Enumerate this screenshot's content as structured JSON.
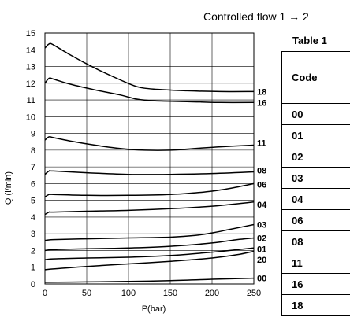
{
  "title": "Controlled flow  1 → 2",
  "table": {
    "title": "Table 1",
    "header": "Code",
    "codes": [
      "00",
      "01",
      "02",
      "03",
      "04",
      "06",
      "08",
      "11",
      "16",
      "18"
    ]
  },
  "chart_data": {
    "type": "line",
    "title": "",
    "xlabel": "P(bar)",
    "ylabel": "Q (l/min)",
    "xlim": [
      0,
      250
    ],
    "ylim": [
      0,
      15
    ],
    "xticks": [
      0,
      50,
      100,
      150,
      200,
      250
    ],
    "yticks": [
      0,
      1,
      2,
      3,
      4,
      5,
      6,
      7,
      8,
      9,
      10,
      11,
      12,
      13,
      14,
      15
    ],
    "grid": true,
    "series": [
      {
        "name": "18",
        "x": [
          0,
          5,
          10,
          30,
          60,
          90,
          110,
          130,
          170,
          210,
          250
        ],
        "y": [
          14.1,
          14.35,
          14.3,
          13.7,
          12.9,
          12.2,
          11.8,
          11.65,
          11.55,
          11.5,
          11.5
        ]
      },
      {
        "name": "16",
        "x": [
          0,
          5,
          10,
          30,
          60,
          90,
          110,
          130,
          170,
          210,
          250
        ],
        "y": [
          12.0,
          12.3,
          12.25,
          11.95,
          11.6,
          11.3,
          11.05,
          10.95,
          10.9,
          10.85,
          10.85
        ]
      },
      {
        "name": "11",
        "x": [
          0,
          5,
          10,
          30,
          60,
          90,
          120,
          150,
          180,
          210,
          250
        ],
        "y": [
          8.6,
          8.8,
          8.75,
          8.55,
          8.3,
          8.1,
          8.0,
          8.0,
          8.1,
          8.2,
          8.3
        ]
      },
      {
        "name": "08",
        "x": [
          0,
          5,
          10,
          50,
          100,
          150,
          200,
          250
        ],
        "y": [
          6.55,
          6.75,
          6.75,
          6.65,
          6.55,
          6.55,
          6.6,
          6.7
        ]
      },
      {
        "name": "06",
        "x": [
          0,
          5,
          10,
          50,
          100,
          150,
          180,
          200,
          220,
          250
        ],
        "y": [
          5.2,
          5.35,
          5.35,
          5.3,
          5.3,
          5.35,
          5.45,
          5.55,
          5.7,
          6.0
        ]
      },
      {
        "name": "04",
        "x": [
          0,
          5,
          10,
          50,
          100,
          150,
          200,
          250
        ],
        "y": [
          4.15,
          4.3,
          4.3,
          4.35,
          4.4,
          4.5,
          4.65,
          4.9
        ]
      },
      {
        "name": "03",
        "x": [
          0,
          10,
          50,
          100,
          150,
          180,
          200,
          220,
          250
        ],
        "y": [
          2.6,
          2.65,
          2.7,
          2.75,
          2.8,
          2.9,
          3.05,
          3.25,
          3.55
        ]
      },
      {
        "name": "02",
        "x": [
          0,
          10,
          50,
          100,
          150,
          200,
          230,
          250
        ],
        "y": [
          2.0,
          2.05,
          2.1,
          2.15,
          2.25,
          2.45,
          2.65,
          2.75
        ]
      },
      {
        "name": "01",
        "x": [
          0,
          10,
          50,
          100,
          150,
          200,
          230,
          250
        ],
        "y": [
          1.45,
          1.5,
          1.55,
          1.6,
          1.7,
          1.9,
          2.05,
          2.15
        ]
      },
      {
        "name": "20",
        "x": [
          0,
          10,
          50,
          100,
          150,
          200,
          230,
          250
        ],
        "y": [
          0.85,
          0.9,
          1.05,
          1.2,
          1.35,
          1.55,
          1.75,
          1.95
        ]
      },
      {
        "name": "00",
        "x": [
          0,
          50,
          100,
          150,
          200,
          250
        ],
        "y": [
          0.1,
          0.12,
          0.15,
          0.2,
          0.28,
          0.35
        ]
      }
    ],
    "curve_labels": [
      {
        "name": "18",
        "y": 11.5
      },
      {
        "name": "16",
        "y": 10.85
      },
      {
        "name": "11",
        "y": 8.45
      },
      {
        "name": "08",
        "y": 6.8
      },
      {
        "name": "06",
        "y": 5.95
      },
      {
        "name": "04",
        "y": 4.75
      },
      {
        "name": "03",
        "y": 3.55
      },
      {
        "name": "02",
        "y": 2.75
      },
      {
        "name": "01",
        "y": 2.1
      },
      {
        "name": "20",
        "y": 1.45
      },
      {
        "name": "00",
        "y": 0.35
      }
    ]
  }
}
